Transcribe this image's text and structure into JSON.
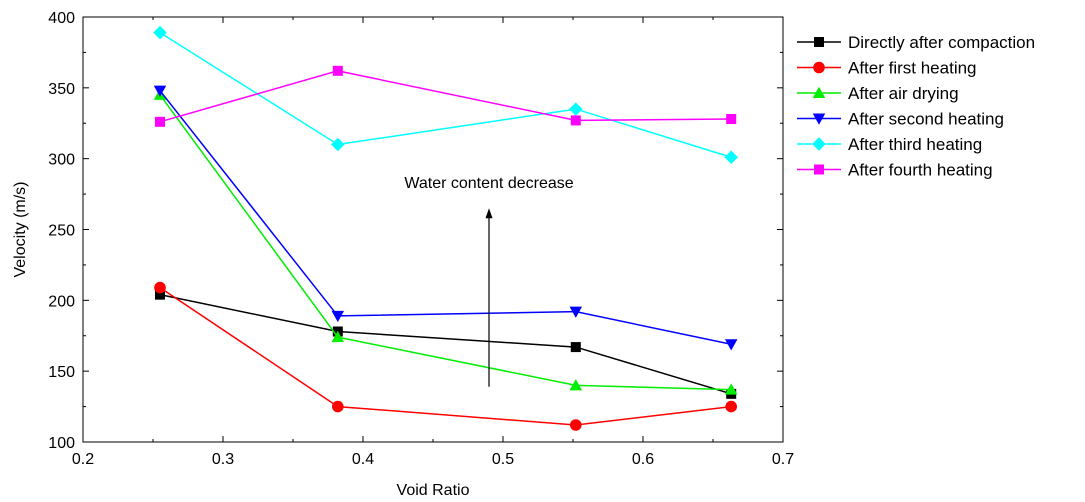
{
  "chart_data": {
    "type": "line",
    "xlabel": "Void Ratio",
    "ylabel": "Velocity (m/s)",
    "xlim": [
      0.2,
      0.7
    ],
    "ylim": [
      100,
      400
    ],
    "x_ticks": [
      "0.2",
      "0.3",
      "0.4",
      "0.5",
      "0.6",
      "0.7"
    ],
    "y_ticks": [
      "100",
      "150",
      "200",
      "250",
      "300",
      "350",
      "400"
    ],
    "x": [
      0.255,
      0.382,
      0.552,
      0.663
    ],
    "grid": false,
    "legend_position": "outside-right",
    "series": [
      {
        "name": "Directly after compaction",
        "color": "#000000",
        "marker": "square",
        "values": [
          204,
          178,
          167,
          134
        ]
      },
      {
        "name": "After first heating",
        "color": "#ff0000",
        "marker": "circle",
        "values": [
          209,
          125,
          112,
          125
        ]
      },
      {
        "name": "After air drying",
        "color": "#00ee00",
        "marker": "triangle-up",
        "values": [
          345,
          174,
          140,
          137
        ]
      },
      {
        "name": "After second heating",
        "color": "#0000ff",
        "marker": "triangle-down",
        "values": [
          348,
          189,
          192,
          169
        ]
      },
      {
        "name": "After third heating",
        "color": "#00ffff",
        "marker": "diamond",
        "values": [
          389,
          310,
          335,
          301
        ]
      },
      {
        "name": "After fourth heating",
        "color": "#ff00ff",
        "marker": "square",
        "values": [
          326,
          362,
          327,
          328
        ]
      }
    ],
    "annotation": {
      "text": "Water content decrease",
      "arrow_from": [
        0.49,
        139
      ],
      "arrow_to": [
        0.49,
        265
      ],
      "text_at": [
        0.49,
        278
      ]
    }
  }
}
